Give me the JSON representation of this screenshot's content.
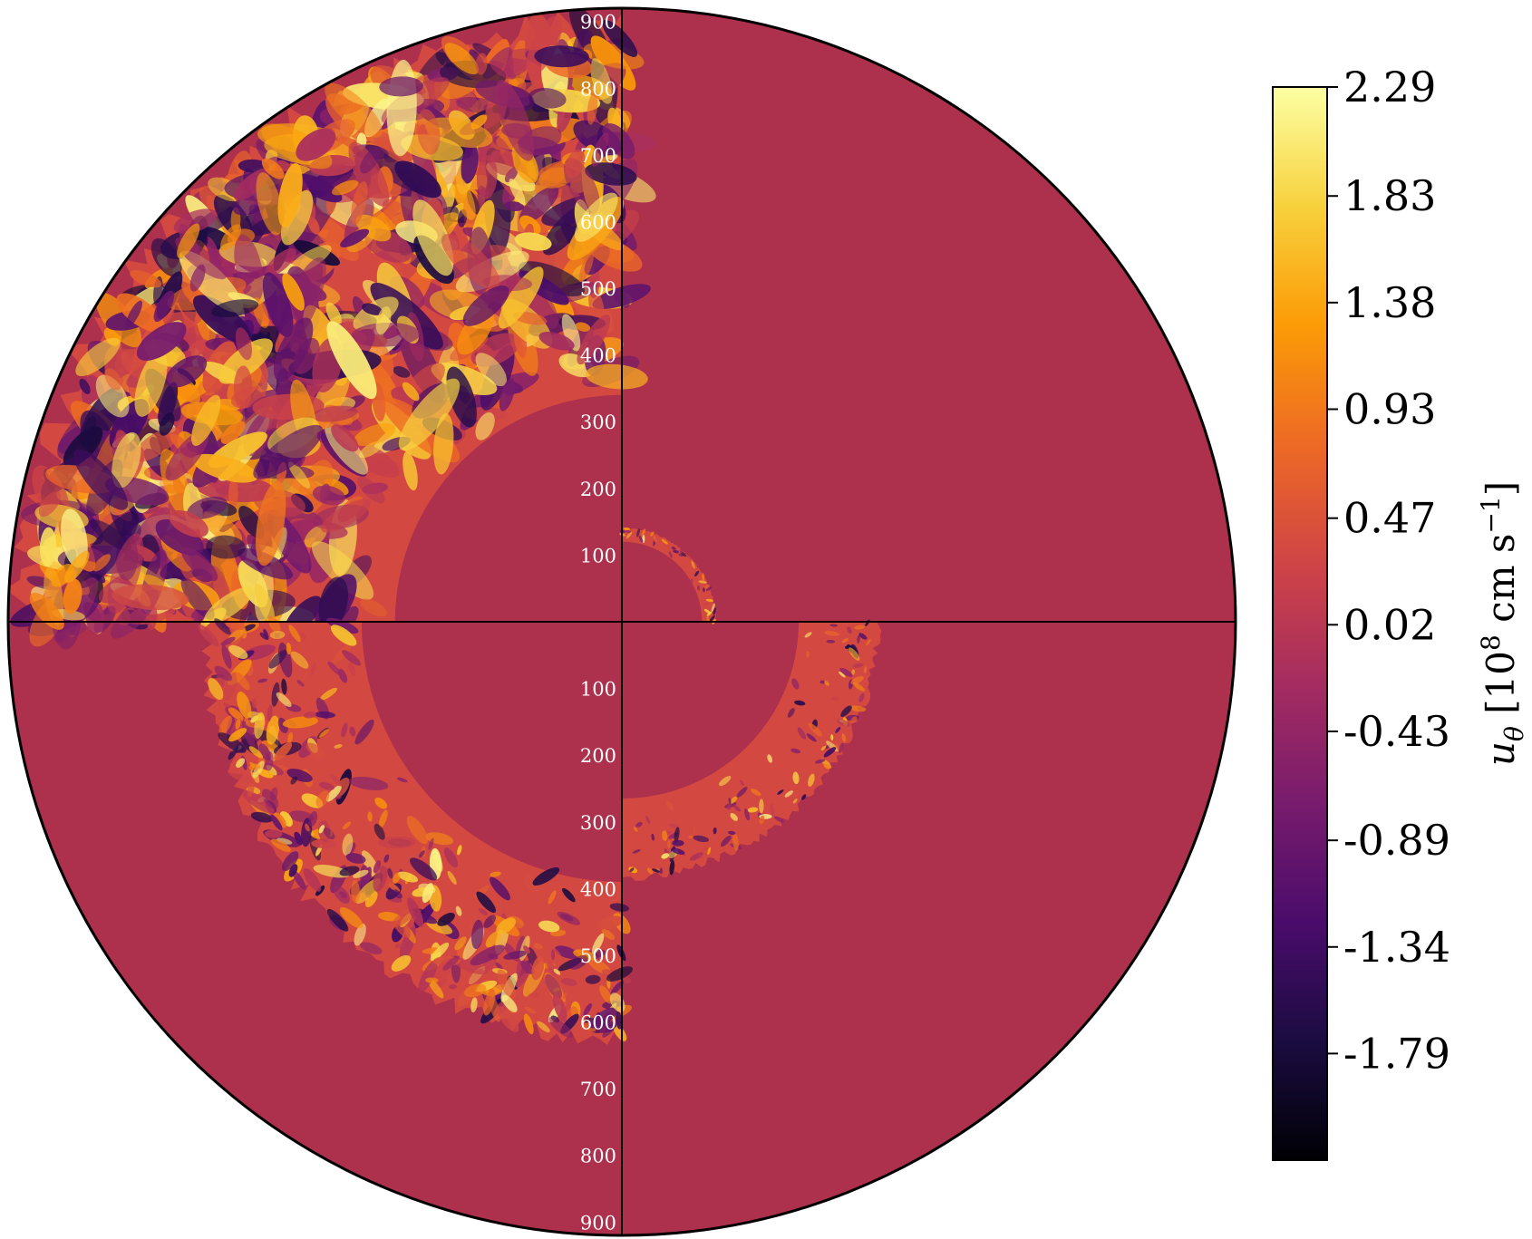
{
  "chart_data": {
    "type": "heatmap",
    "projection": "polar-disk",
    "description_of_field": "azimuthal velocity field, four quadrants showing different convective shell snapshots",
    "radial_axis": {
      "range": [
        0,
        920
      ],
      "ticks_upper": [
        "900",
        "800",
        "700",
        "600",
        "500",
        "400",
        "300",
        "200",
        "100"
      ],
      "ticks_lower": [
        "100",
        "200",
        "300",
        "400",
        "500",
        "600",
        "700",
        "800",
        "900"
      ]
    },
    "quadrants": [
      {
        "quadrant": "top-left",
        "inner_radius": 340,
        "outer_radius": 880
      },
      {
        "quadrant": "top-right",
        "inner_radius": 120,
        "outer_radius": 140
      },
      {
        "quadrant": "bottom-left",
        "inner_radius": 390,
        "outer_radius": 620
      },
      {
        "quadrant": "bottom-right",
        "inner_radius": 265,
        "outer_radius": 380
      }
    ],
    "background_value": 0.02,
    "colorbar": {
      "colormap": "inferno",
      "min": -2.24,
      "max": 2.29,
      "ticks": [
        "2.29",
        "1.83",
        "1.38",
        "0.93",
        "0.47",
        "0.02",
        "-0.43",
        "-0.89",
        "-1.34",
        "-1.79"
      ],
      "label_symbol": "u",
      "label_subscript": "θ",
      "label_units_open": " [10",
      "label_units_exp": "8",
      "label_units_mid": " cm s",
      "label_units_exp2": "−1",
      "label_units_close": "]"
    }
  },
  "colors": {
    "background_field": "#ad314c",
    "axis_line": "#000000",
    "inferno_stops": [
      "#000004",
      "#1b0c41",
      "#4a0c6b",
      "#781c6d",
      "#a52c60",
      "#cf4446",
      "#ed6925",
      "#fb9b06",
      "#f7d13d",
      "#fcffa4"
    ]
  }
}
